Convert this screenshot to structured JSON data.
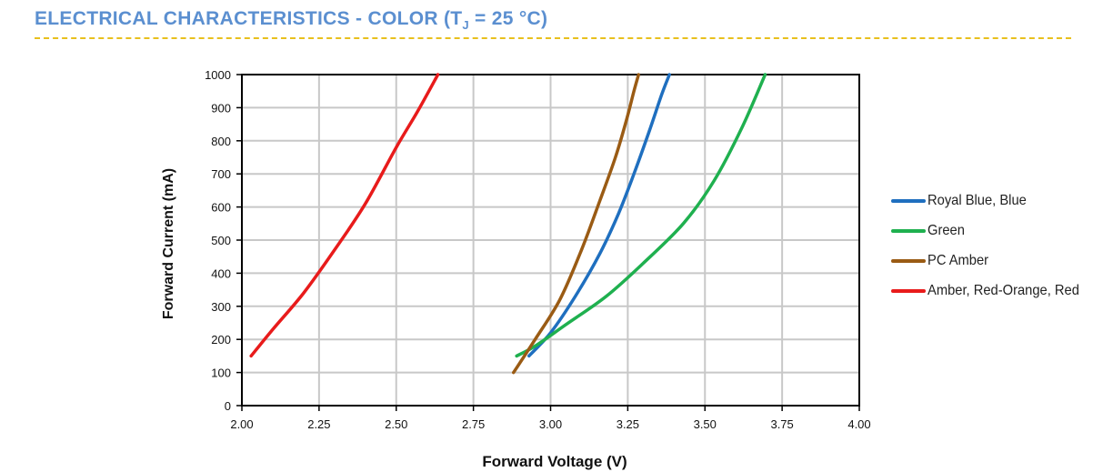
{
  "header": {
    "title_main": "ELECTRICAL CHARACTERISTICS - COLOR (T",
    "title_sub": "J",
    "title_end": " = 25 °C)"
  },
  "chart_data": {
    "type": "line",
    "title": "",
    "xlabel": "Forward Voltage (V)",
    "ylabel": "Forward Current (mA)",
    "xlim": [
      2.0,
      4.0
    ],
    "ylim": [
      0,
      1000
    ],
    "xticks": [
      "2.00",
      "2.25",
      "2.50",
      "2.75",
      "3.00",
      "3.25",
      "3.50",
      "3.75",
      "4.00"
    ],
    "yticks": [
      "0",
      "100",
      "200",
      "300",
      "400",
      "500",
      "600",
      "700",
      "800",
      "900",
      "1000"
    ],
    "grid": true,
    "legend_position": "right",
    "series": [
      {
        "name": "Royal Blue, Blue",
        "color": "#1f6fbf",
        "x": [
          2.93,
          3.0,
          3.08,
          3.16,
          3.22,
          3.27,
          3.32,
          3.36,
          3.385
        ],
        "y": [
          150,
          220,
          330,
          460,
          580,
          700,
          830,
          940,
          1000
        ]
      },
      {
        "name": "Green",
        "color": "#1fb04f",
        "x": [
          2.89,
          2.95,
          3.05,
          3.18,
          3.3,
          3.43,
          3.53,
          3.62,
          3.695
        ],
        "y": [
          150,
          180,
          245,
          330,
          430,
          550,
          680,
          840,
          1000
        ]
      },
      {
        "name": "PC Amber",
        "color": "#9a5b14",
        "x": [
          2.88,
          2.95,
          3.03,
          3.1,
          3.16,
          3.21,
          3.245,
          3.27,
          3.285
        ],
        "y": [
          100,
          200,
          320,
          470,
          620,
          750,
          860,
          950,
          1000
        ]
      },
      {
        "name": "Amber, Red-Orange, Red",
        "color": "#e81b1b",
        "x": [
          2.03,
          2.1,
          2.2,
          2.3,
          2.4,
          2.5,
          2.57,
          2.635
        ],
        "y": [
          150,
          230,
          340,
          470,
          610,
          780,
          890,
          1000
        ]
      }
    ]
  }
}
